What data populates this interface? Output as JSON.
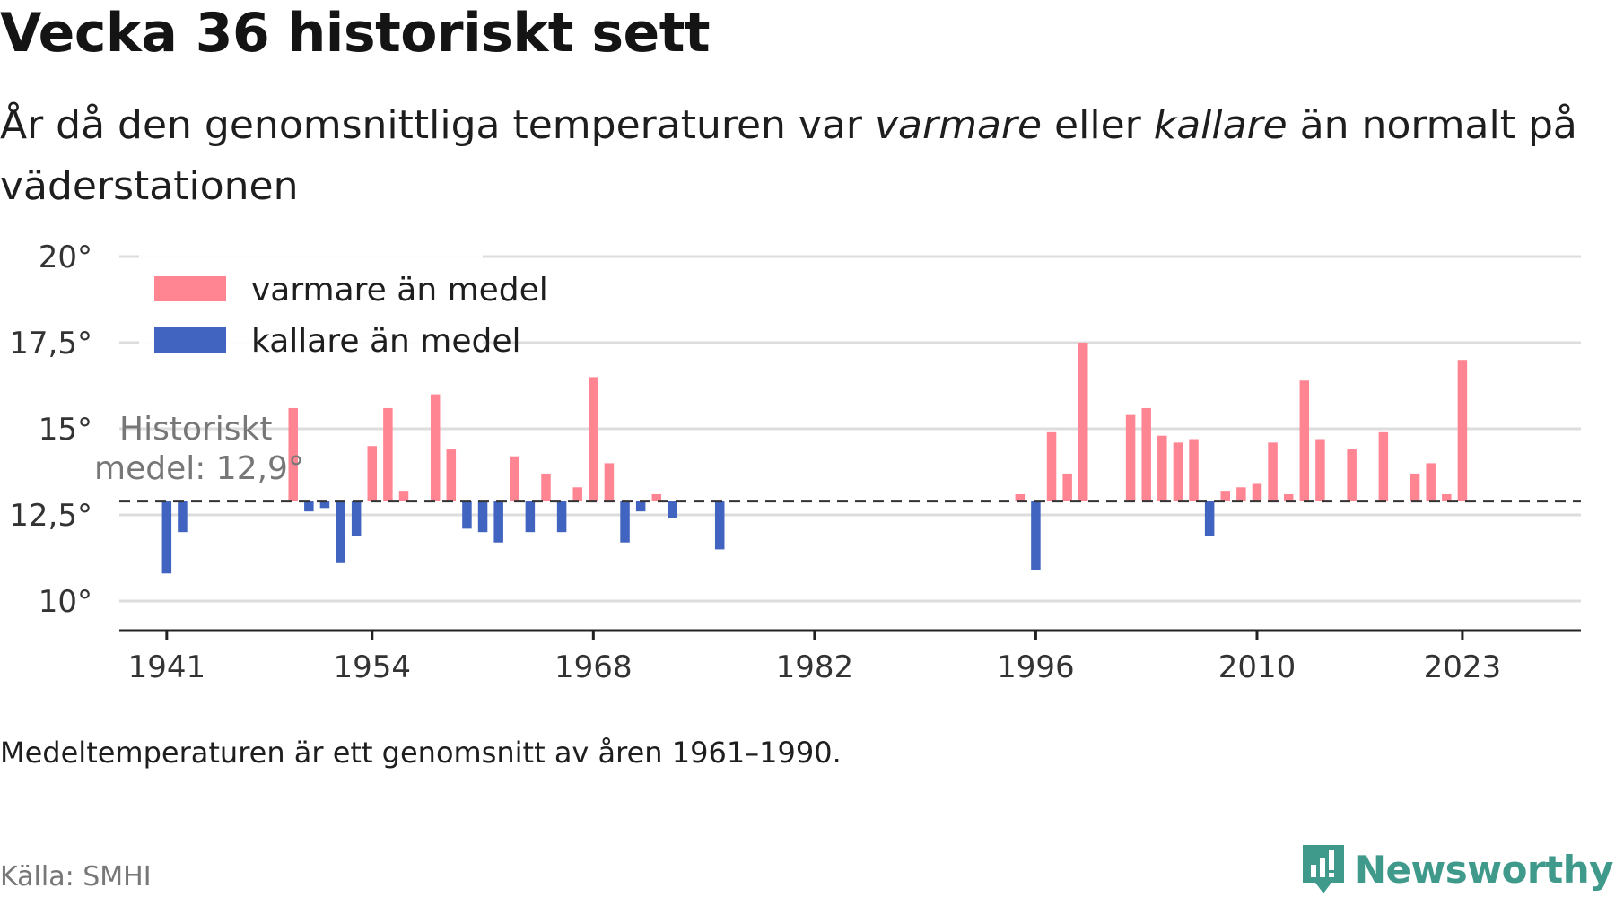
{
  "title": "Vecka 36 historiskt sett",
  "subtitle": {
    "part1": "År då den genomsnittliga temperaturen var ",
    "warm_word": "varmare",
    "part2": " eller ",
    "cold_word": "kallare",
    "part3": " än normalt på väderstationen"
  },
  "note": "Medeltemperaturen är ett genomsnitt av åren 1961–1990.",
  "source": "Källa: SMHI",
  "brand": {
    "name": "Newsworthy",
    "icon": "newsworthy-logo-icon"
  },
  "colors": {
    "warm": "#ff8593",
    "cold": "#4064bf",
    "baseline": "#333333",
    "grid": "#dddddd",
    "mean_label": "#777777"
  },
  "chart_data": {
    "type": "bar",
    "baseline": 12.9,
    "baseline_label_lines": [
      "Historiskt",
      "medel: 12,9°"
    ],
    "ylim": [
      9,
      20
    ],
    "yticks": [
      10,
      12.5,
      15,
      17.5,
      20
    ],
    "ytick_labels": [
      "10°",
      "12,5°",
      "15°",
      "17,5°",
      "20°"
    ],
    "xlim": [
      1938,
      2030.5
    ],
    "xticks": [
      1941,
      1954,
      1968,
      1982,
      1996,
      2010,
      2023
    ],
    "xtick_labels": [
      "1941",
      "1954",
      "1968",
      "1982",
      "1996",
      "2010",
      "2023"
    ],
    "legend": {
      "position": "top-left",
      "entries": [
        {
          "label": "varmare än medel",
          "series": "warm"
        },
        {
          "label": "kallare än medel",
          "series": "cold"
        }
      ]
    },
    "grid": true,
    "series": [
      {
        "name": "varmare än medel",
        "color_key": "warm"
      },
      {
        "name": "kallare än medel",
        "color_key": "cold"
      }
    ],
    "data": [
      {
        "year": 1941,
        "value": 10.8
      },
      {
        "year": 1942,
        "value": 12.0
      },
      {
        "year": 1949,
        "value": 15.6
      },
      {
        "year": 1950,
        "value": 12.6
      },
      {
        "year": 1951,
        "value": 12.7
      },
      {
        "year": 1952,
        "value": 11.1
      },
      {
        "year": 1953,
        "value": 11.9
      },
      {
        "year": 1954,
        "value": 14.5
      },
      {
        "year": 1955,
        "value": 15.6
      },
      {
        "year": 1956,
        "value": 13.2
      },
      {
        "year": 1958,
        "value": 16.0
      },
      {
        "year": 1959,
        "value": 14.4
      },
      {
        "year": 1960,
        "value": 12.1
      },
      {
        "year": 1961,
        "value": 12.0
      },
      {
        "year": 1962,
        "value": 11.7
      },
      {
        "year": 1963,
        "value": 14.2
      },
      {
        "year": 1964,
        "value": 12.0
      },
      {
        "year": 1965,
        "value": 13.7
      },
      {
        "year": 1966,
        "value": 12.0
      },
      {
        "year": 1967,
        "value": 13.3
      },
      {
        "year": 1968,
        "value": 16.5
      },
      {
        "year": 1969,
        "value": 14.0
      },
      {
        "year": 1970,
        "value": 11.7
      },
      {
        "year": 1971,
        "value": 12.6
      },
      {
        "year": 1972,
        "value": 13.1
      },
      {
        "year": 1973,
        "value": 12.4
      },
      {
        "year": 1976,
        "value": 11.5
      },
      {
        "year": 1995,
        "value": 13.1
      },
      {
        "year": 1996,
        "value": 10.9
      },
      {
        "year": 1997,
        "value": 14.9
      },
      {
        "year": 1998,
        "value": 13.7
      },
      {
        "year": 1999,
        "value": 17.5
      },
      {
        "year": 2002,
        "value": 15.4
      },
      {
        "year": 2003,
        "value": 15.6
      },
      {
        "year": 2004,
        "value": 14.8
      },
      {
        "year": 2005,
        "value": 14.6
      },
      {
        "year": 2006,
        "value": 14.7
      },
      {
        "year": 2007,
        "value": 11.9
      },
      {
        "year": 2008,
        "value": 13.2
      },
      {
        "year": 2009,
        "value": 13.3
      },
      {
        "year": 2010,
        "value": 13.4
      },
      {
        "year": 2011,
        "value": 14.6
      },
      {
        "year": 2012,
        "value": 13.1
      },
      {
        "year": 2013,
        "value": 16.4
      },
      {
        "year": 2014,
        "value": 14.7
      },
      {
        "year": 2016,
        "value": 14.4
      },
      {
        "year": 2018,
        "value": 14.9
      },
      {
        "year": 2020,
        "value": 13.7
      },
      {
        "year": 2021,
        "value": 14.0
      },
      {
        "year": 2022,
        "value": 13.1
      },
      {
        "year": 2023,
        "value": 17.0
      }
    ]
  }
}
